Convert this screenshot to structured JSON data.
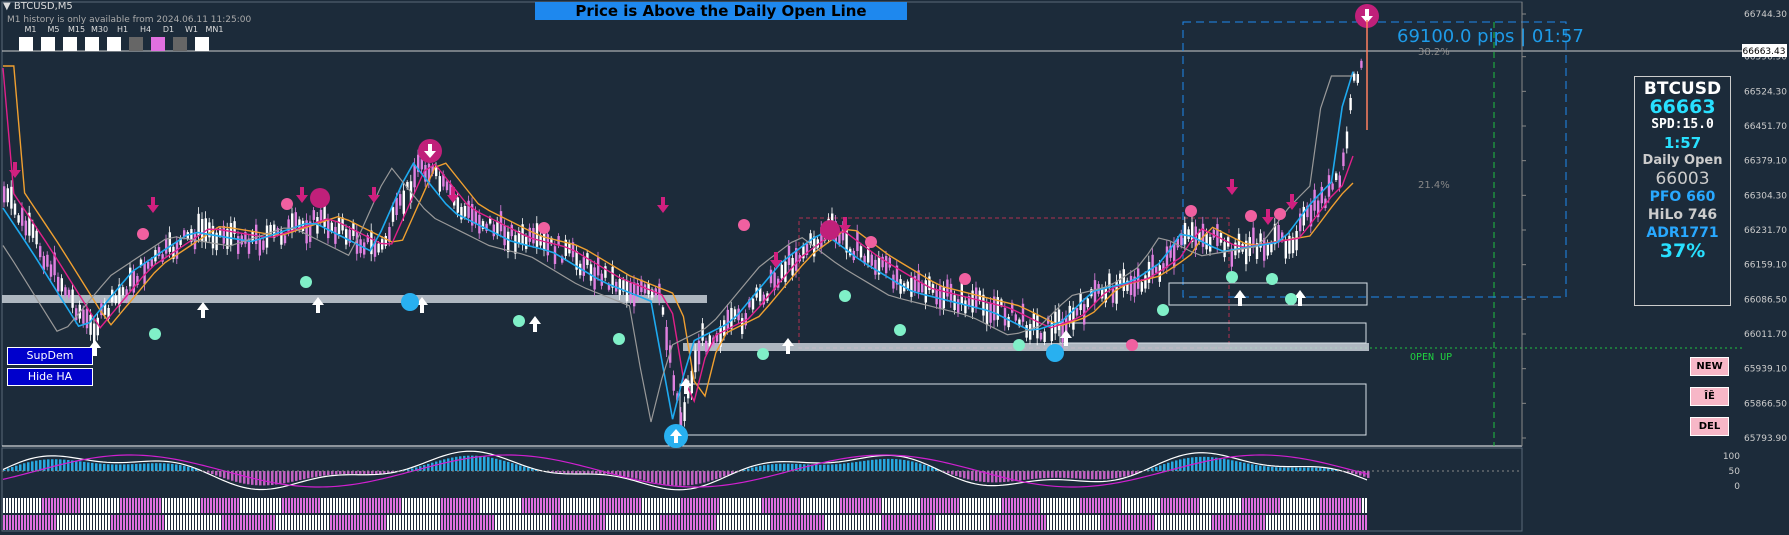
{
  "window": {
    "title": "BTCUSD,M5",
    "history_note": "M1 history is only available from 2024.06.11 11:25:00"
  },
  "timeframes": [
    {
      "label": "M1",
      "color": "#ffffff"
    },
    {
      "label": "M5",
      "color": "#ffffff"
    },
    {
      "label": "M15",
      "color": "#ffffff"
    },
    {
      "label": "M30",
      "color": "#ffffff"
    },
    {
      "label": "H1",
      "color": "#ffffff"
    },
    {
      "label": "H4",
      "color": "#666666"
    },
    {
      "label": "D1",
      "color": "#e070e0"
    },
    {
      "label": "W1",
      "color": "#666666"
    },
    {
      "label": "MN1",
      "color": "#ffffff"
    }
  ],
  "banner": "Price is Above the Daily Open Line",
  "pips_label": "69100.0 pips | 01:57",
  "fib_labels": [
    "38.2%",
    "21.4%"
  ],
  "open_label": "OPEN UP",
  "left_buttons": [
    "SupDem",
    "Hide HA"
  ],
  "right_buttons": [
    "NEW",
    "ÎÊ",
    "DEL"
  ],
  "info": {
    "symbol": "BTCUSD",
    "price": "66663",
    "spread": "SPD:15.0",
    "timer": "1:57",
    "daily_open_label": "Daily Open",
    "daily_open": "66003",
    "pfo": "PFO 660",
    "hilo": "HiLo 746",
    "adr": "ADR1771",
    "adr_pct": "37%"
  },
  "price_axis": {
    "ticks": [
      "66744.30",
      "66596.90",
      "66524.30",
      "66451.70",
      "66379.10",
      "66304.30",
      "66231.70",
      "66159.10",
      "66086.50",
      "66011.70",
      "65939.10",
      "65866.50",
      "65793.90"
    ],
    "current_price": "66663.43"
  },
  "osc_axis": {
    "ticks": [
      "100",
      "50",
      "0"
    ]
  },
  "colors": {
    "background": "#1c2b3a",
    "bull_candle": "#ffffff",
    "bear_candle": "#e080e0",
    "ma_fast": "#1eaaf0",
    "ma_mid": "#e0208a",
    "ma_slow": "#f0a030",
    "ma_gray": "#999999",
    "up_arrow": "#ffffff",
    "down_arrow": "#d0207f",
    "accent_blue": "#1e88ee"
  }
}
